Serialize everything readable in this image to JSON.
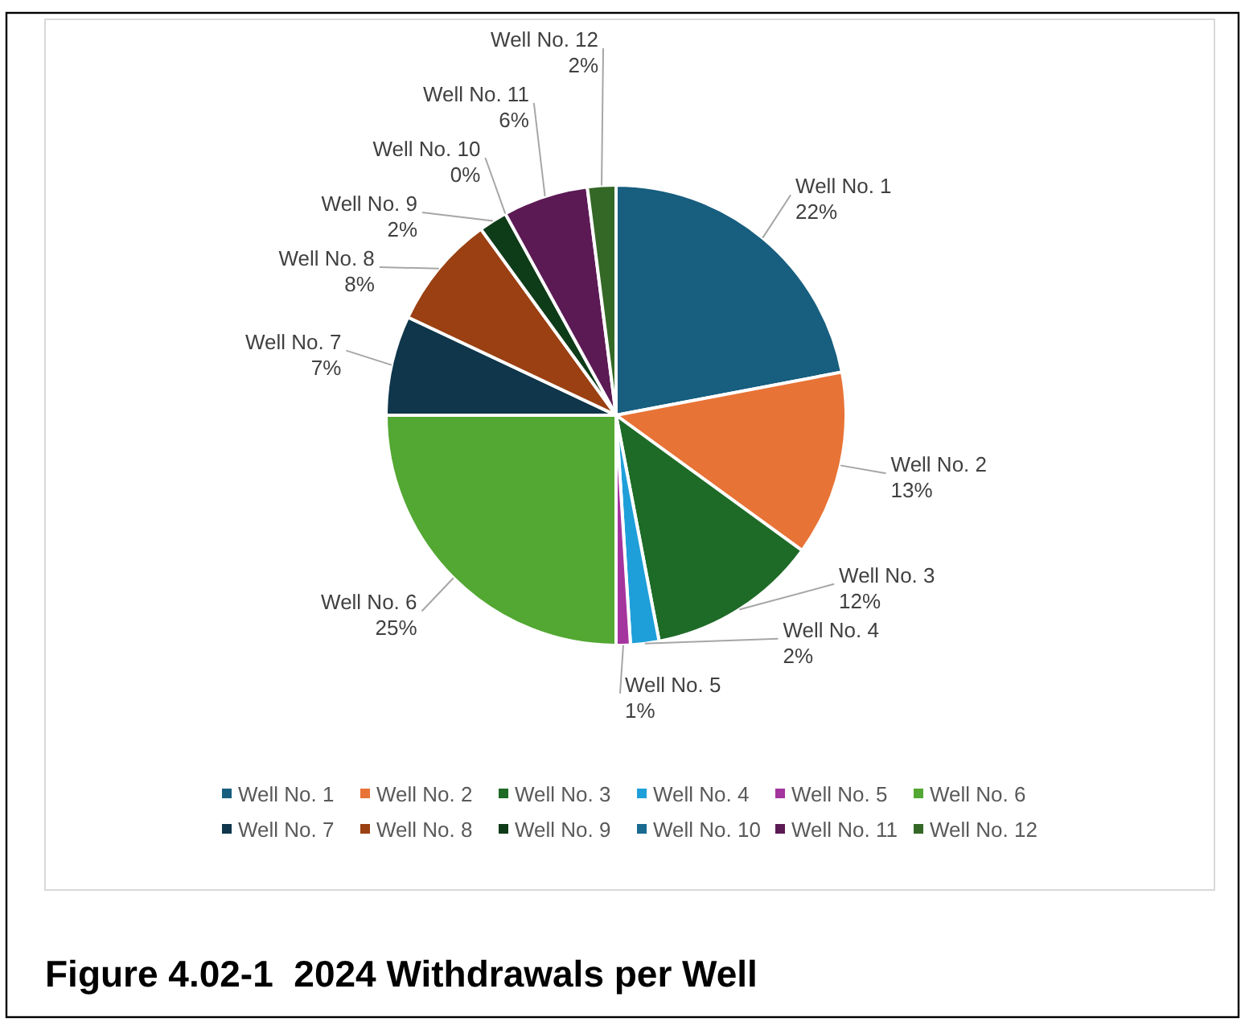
{
  "chart_data": {
    "type": "pie",
    "title": "Figure 4.02-1  2024 Withdrawals per Well",
    "categories": [
      "Well No. 1",
      "Well No. 2",
      "Well No. 3",
      "Well No. 4",
      "Well No. 5",
      "Well No. 6",
      "Well No. 7",
      "Well No. 8",
      "Well No. 9",
      "Well No. 10",
      "Well No. 11",
      "Well No. 12"
    ],
    "values": [
      22,
      13,
      12,
      2,
      1,
      25,
      7,
      8,
      2,
      0,
      6,
      2
    ],
    "value_labels": [
      "22%",
      "13%",
      "12%",
      "2%",
      "1%",
      "25%",
      "7%",
      "8%",
      "2%",
      "0%",
      "6%",
      "2%"
    ],
    "colors": [
      "#175e7f",
      "#e87336",
      "#1d6b27",
      "#1f9fd9",
      "#a4349e",
      "#52a832",
      "#0f364b",
      "#9a4012",
      "#0e3b18",
      "#1a6a91",
      "#5c1a55",
      "#346826"
    ],
    "legend": "bottom"
  }
}
